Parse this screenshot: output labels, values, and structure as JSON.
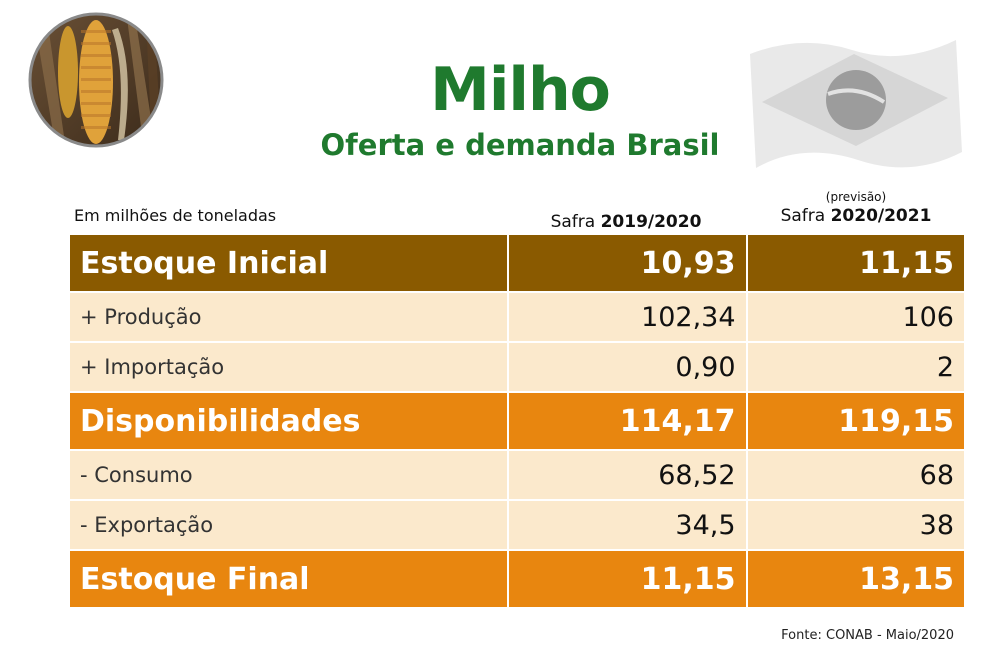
{
  "header": {
    "title": "Milho",
    "subtitle": "Oferta e demanda Brasil"
  },
  "table": {
    "units_label": "Em milhões de toneladas",
    "columns": [
      {
        "prefix": "Safra ",
        "year": "2019/2020",
        "note": ""
      },
      {
        "prefix": "Safra ",
        "year": "2020/2021",
        "note": "(previsão)"
      }
    ],
    "rows": [
      {
        "label": "Estoque Inicial",
        "values": [
          "10,93",
          "11,15"
        ]
      },
      {
        "label": "+ Produção",
        "values": [
          "102,34",
          "106"
        ]
      },
      {
        "label": "+ Importação",
        "values": [
          "0,90",
          "2"
        ]
      },
      {
        "label": "Disponibilidades",
        "values": [
          "114,17",
          "119,15"
        ]
      },
      {
        "label": "- Consumo",
        "values": [
          "68,52",
          "68"
        ]
      },
      {
        "label": "- Exportação",
        "values": [
          "34,5",
          "38"
        ]
      },
      {
        "label": "Estoque Final",
        "values": [
          "11,15",
          "13,15"
        ]
      }
    ]
  },
  "footer": {
    "source": "Fonte: CONAB - Maio/2020"
  },
  "colors": {
    "title_green": "#1f7a2e",
    "brown_header": "#8a5a00",
    "orange_row": "#e8860f",
    "light_row": "#fbe9cc"
  }
}
